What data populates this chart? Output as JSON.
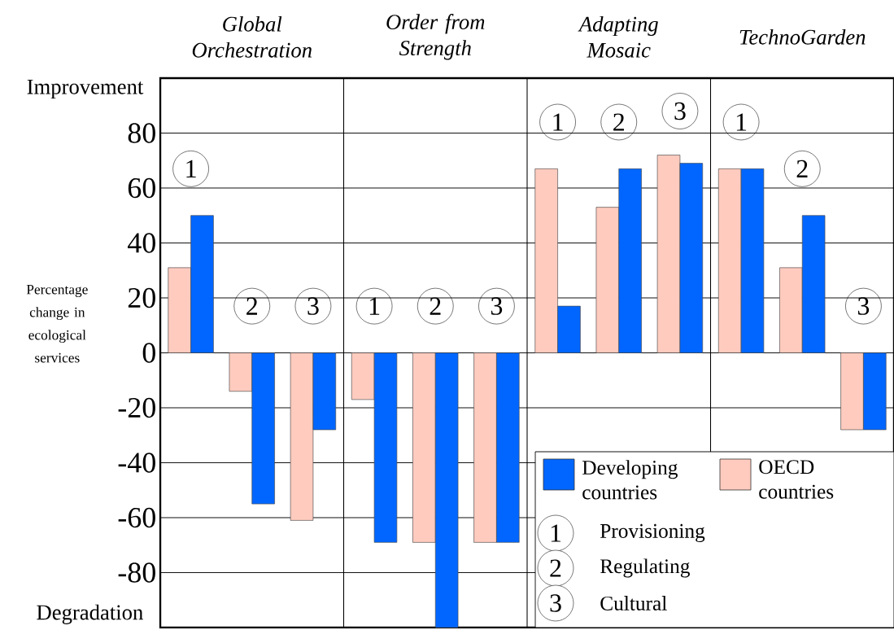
{
  "chart_data": {
    "type": "bar",
    "ylabel": "Percentage change in ecological services",
    "categories": [
      "1",
      "2",
      "3",
      "1",
      "2",
      "3",
      "1",
      "2",
      "3",
      "1",
      "2",
      "3"
    ],
    "series": [
      {
        "name": "OECD countries",
        "color": "#ffcbbf",
        "values": [
          31,
          -14,
          -61,
          -17,
          -69,
          -69,
          67,
          53,
          72,
          67,
          31,
          -28
        ]
      },
      {
        "name": "Developing countries",
        "color": "#0066ff",
        "values": [
          50,
          -55,
          -28,
          -69,
          -100,
          -69,
          17,
          67,
          69,
          67,
          50,
          -28
        ]
      }
    ],
    "annotations": [
      "Global Orchestration",
      "Order from Strength",
      "Adapting Mosaic",
      "TechnoGarden",
      "Improvement",
      "Degradation",
      "Provisioning",
      "Regulating",
      "Cultural"
    ],
    "ylim": [
      -100,
      100
    ],
    "yticks": [
      -80,
      -60,
      -40,
      -20,
      0,
      20,
      40,
      60,
      80
    ],
    "grid": "y",
    "legend": "bottom right"
  }
}
